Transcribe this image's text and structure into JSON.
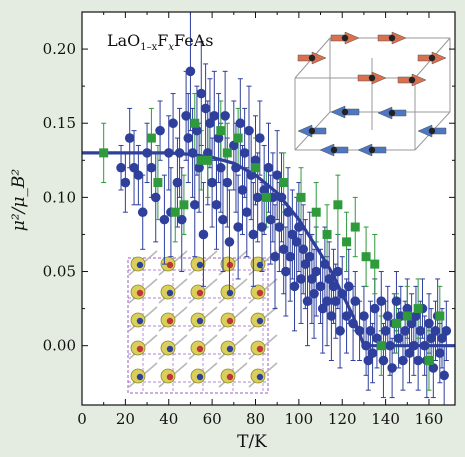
{
  "chart_data": {
    "type": "scatter",
    "xlabel": "T/K",
    "ylabel": "μ²/μ_B²",
    "xlim": [
      0,
      172
    ],
    "ylim": [
      -0.04,
      0.225
    ],
    "xticks": [
      0,
      20,
      40,
      60,
      80,
      100,
      120,
      140,
      160
    ],
    "yticks": [
      0.0,
      0.05,
      0.1,
      0.15,
      0.2
    ],
    "xtick_labels": [
      "0",
      "20",
      "40",
      "60",
      "80",
      "100",
      "120",
      "140",
      "160"
    ],
    "ytick_labels": [
      "0.00",
      "0.05",
      "0.10",
      "0.15",
      "0.20"
    ],
    "annotation": {
      "base": "LaO",
      "sub1": "1–x",
      "mid": "F",
      "sub2": "x",
      "tail": "FeAs"
    },
    "colors": {
      "blue_series": "#2e3f9c",
      "green_series": "#2e9a3c",
      "fit_line": "#2e3f9c",
      "background": "#e4ece1"
    },
    "series": [
      {
        "marker": "circle",
        "color": "#2e3f9c",
        "points": [
          [
            18,
            0.12,
            0.015
          ],
          [
            20,
            0.11,
            0.02
          ],
          [
            22,
            0.14,
            0.02
          ],
          [
            24,
            0.12,
            0.025
          ],
          [
            26,
            0.115,
            0.02
          ],
          [
            28,
            0.09,
            0.025
          ],
          [
            30,
            0.13,
            0.02
          ],
          [
            32,
            0.12,
            0.02
          ],
          [
            34,
            0.1,
            0.03
          ],
          [
            36,
            0.145,
            0.02
          ],
          [
            38,
            0.085,
            0.03
          ],
          [
            40,
            0.13,
            0.025
          ],
          [
            41,
            0.09,
            0.03
          ],
          [
            42,
            0.15,
            0.02
          ],
          [
            44,
            0.11,
            0.03
          ],
          [
            45,
            0.13,
            0.03
          ],
          [
            46,
            0.085,
            0.035
          ],
          [
            48,
            0.155,
            0.03
          ],
          [
            49,
            0.14,
            0.03
          ],
          [
            50,
            0.185,
            0.04
          ],
          [
            51,
            0.13,
            0.03
          ],
          [
            52,
            0.095,
            0.035
          ],
          [
            53,
            0.145,
            0.03
          ],
          [
            54,
            0.12,
            0.03
          ],
          [
            55,
            0.17,
            0.035
          ],
          [
            56,
            0.075,
            0.035
          ],
          [
            57,
            0.16,
            0.03
          ],
          [
            58,
            0.13,
            0.035
          ],
          [
            59,
            0.15,
            0.03
          ],
          [
            60,
            0.11,
            0.03
          ],
          [
            61,
            0.155,
            0.03
          ],
          [
            62,
            0.095,
            0.03
          ],
          [
            63,
            0.14,
            0.03
          ],
          [
            64,
            0.12,
            0.03
          ],
          [
            65,
            0.085,
            0.035
          ],
          [
            66,
            0.155,
            0.03
          ],
          [
            67,
            0.11,
            0.03
          ],
          [
            68,
            0.07,
            0.035
          ],
          [
            70,
            0.135,
            0.03
          ],
          [
            71,
            0.12,
            0.03
          ],
          [
            72,
            0.08,
            0.035
          ],
          [
            73,
            0.15,
            0.03
          ],
          [
            74,
            0.105,
            0.03
          ],
          [
            75,
            0.13,
            0.03
          ],
          [
            76,
            0.09,
            0.03
          ],
          [
            77,
            0.145,
            0.03
          ],
          [
            78,
            0.115,
            0.03
          ],
          [
            79,
            0.075,
            0.035
          ],
          [
            80,
            0.125,
            0.03
          ],
          [
            81,
            0.1,
            0.03
          ],
          [
            82,
            0.14,
            0.025
          ],
          [
            83,
            0.08,
            0.03
          ],
          [
            84,
            0.105,
            0.03
          ],
          [
            86,
            0.12,
            0.03
          ],
          [
            87,
            0.085,
            0.03
          ],
          [
            88,
            0.1,
            0.03
          ],
          [
            89,
            0.06,
            0.035
          ],
          [
            90,
            0.115,
            0.03
          ],
          [
            91,
            0.08,
            0.03
          ],
          [
            92,
            0.1,
            0.03
          ],
          [
            93,
            0.065,
            0.03
          ],
          [
            94,
            0.05,
            0.03
          ],
          [
            95,
            0.09,
            0.03
          ],
          [
            96,
            0.06,
            0.03
          ],
          [
            97,
            0.075,
            0.03
          ],
          [
            98,
            0.04,
            0.03
          ],
          [
            99,
            0.07,
            0.03
          ],
          [
            100,
            0.08,
            0.03
          ],
          [
            101,
            0.045,
            0.03
          ],
          [
            102,
            0.065,
            0.03
          ],
          [
            103,
            0.055,
            0.03
          ],
          [
            104,
            0.03,
            0.03
          ],
          [
            105,
            0.06,
            0.03
          ],
          [
            106,
            0.045,
            0.03
          ],
          [
            107,
            0.035,
            0.03
          ],
          [
            108,
            0.05,
            0.03
          ],
          [
            110,
            0.04,
            0.025
          ],
          [
            111,
            0.025,
            0.03
          ],
          [
            112,
            0.055,
            0.025
          ],
          [
            113,
            0.03,
            0.03
          ],
          [
            114,
            0.045,
            0.025
          ],
          [
            115,
            0.02,
            0.03
          ],
          [
            116,
            0.04,
            0.025
          ],
          [
            117,
            0.03,
            0.025
          ],
          [
            118,
            0.05,
            0.025
          ],
          [
            119,
            0.01,
            0.025
          ],
          [
            120,
            0.035,
            0.025
          ],
          [
            122,
            0.02,
            0.025
          ],
          [
            123,
            0.04,
            0.025
          ],
          [
            125,
            0.015,
            0.025
          ],
          [
            126,
            0.03,
            0.02
          ],
          [
            128,
            0.01,
            0.02
          ],
          [
            130,
            0.02,
            0.02
          ],
          [
            131,
            0.0,
            0.02
          ],
          [
            132,
            -0.01,
            0.02
          ],
          [
            133,
            0.01,
            0.02
          ],
          [
            134,
            -0.005,
            0.02
          ],
          [
            135,
            0.025,
            0.02
          ],
          [
            136,
            0.005,
            0.02
          ],
          [
            138,
            0.03,
            0.02
          ],
          [
            139,
            -0.01,
            0.025
          ],
          [
            140,
            0.01,
            0.02
          ],
          [
            141,
            0.02,
            0.02
          ],
          [
            142,
            0.0,
            0.02
          ],
          [
            143,
            -0.015,
            0.02
          ],
          [
            144,
            0.015,
            0.02
          ],
          [
            145,
            0.03,
            0.02
          ],
          [
            146,
            0.005,
            0.02
          ],
          [
            147,
            0.02,
            0.02
          ],
          [
            148,
            -0.01,
            0.02
          ],
          [
            149,
            0.01,
            0.02
          ],
          [
            150,
            0.025,
            0.02
          ],
          [
            151,
            -0.005,
            0.02
          ],
          [
            152,
            0.015,
            0.02
          ],
          [
            153,
            0.0,
            0.02
          ],
          [
            154,
            0.02,
            0.02
          ],
          [
            155,
            -0.01,
            0.02
          ],
          [
            156,
            0.01,
            0.02
          ],
          [
            157,
            0.025,
            0.02
          ],
          [
            158,
            0.0,
            0.02
          ],
          [
            159,
            -0.01,
            0.025
          ],
          [
            160,
            0.015,
            0.02
          ],
          [
            161,
            0.005,
            0.02
          ],
          [
            162,
            -0.015,
            0.02
          ],
          [
            163,
            0.01,
            0.02
          ],
          [
            164,
            0.02,
            0.025
          ],
          [
            165,
            -0.005,
            0.02
          ],
          [
            166,
            0.005,
            0.02
          ],
          [
            167,
            -0.02,
            0.02
          ],
          [
            168,
            0.01,
            0.02
          ]
        ]
      },
      {
        "marker": "square",
        "color": "#2e9a3c",
        "points": [
          [
            10,
            0.13,
            0.02
          ],
          [
            32,
            0.14,
            0.02
          ],
          [
            35,
            0.11,
            0.025
          ],
          [
            43,
            0.09,
            0.02
          ],
          [
            47,
            0.095,
            0.02
          ],
          [
            52,
            0.15,
            0.02
          ],
          [
            55,
            0.125,
            0.02
          ],
          [
            58,
            0.125,
            0.025
          ],
          [
            64,
            0.145,
            0.02
          ],
          [
            67,
            0.13,
            0.02
          ],
          [
            72,
            0.14,
            0.02
          ],
          [
            80,
            0.12,
            0.02
          ],
          [
            85,
            0.1,
            0.02
          ],
          [
            93,
            0.11,
            0.02
          ],
          [
            101,
            0.1,
            0.02
          ],
          [
            108,
            0.09,
            0.02
          ],
          [
            113,
            0.075,
            0.02
          ],
          [
            118,
            0.095,
            0.02
          ],
          [
            122,
            0.07,
            0.02
          ],
          [
            126,
            0.08,
            0.02
          ],
          [
            131,
            0.06,
            0.02
          ],
          [
            135,
            0.055,
            0.02
          ],
          [
            138,
            0.0,
            0.02
          ],
          [
            145,
            0.015,
            0.02
          ],
          [
            150,
            0.02,
            0.02
          ],
          [
            155,
            0.025,
            0.02
          ],
          [
            160,
            -0.01,
            0.02
          ],
          [
            165,
            0.02,
            0.02
          ]
        ]
      }
    ],
    "fit": {
      "color": "#2e3f9c",
      "points": [
        [
          0,
          0.13
        ],
        [
          20,
          0.13
        ],
        [
          40,
          0.13
        ],
        [
          50,
          0.129
        ],
        [
          60,
          0.127
        ],
        [
          70,
          0.123
        ],
        [
          80,
          0.115
        ],
        [
          90,
          0.103
        ],
        [
          100,
          0.085
        ],
        [
          110,
          0.062
        ],
        [
          115,
          0.05
        ],
        [
          120,
          0.035
        ],
        [
          125,
          0.02
        ],
        [
          130,
          0.0
        ],
        [
          135,
          0.0
        ],
        [
          172,
          0.0
        ]
      ]
    }
  }
}
